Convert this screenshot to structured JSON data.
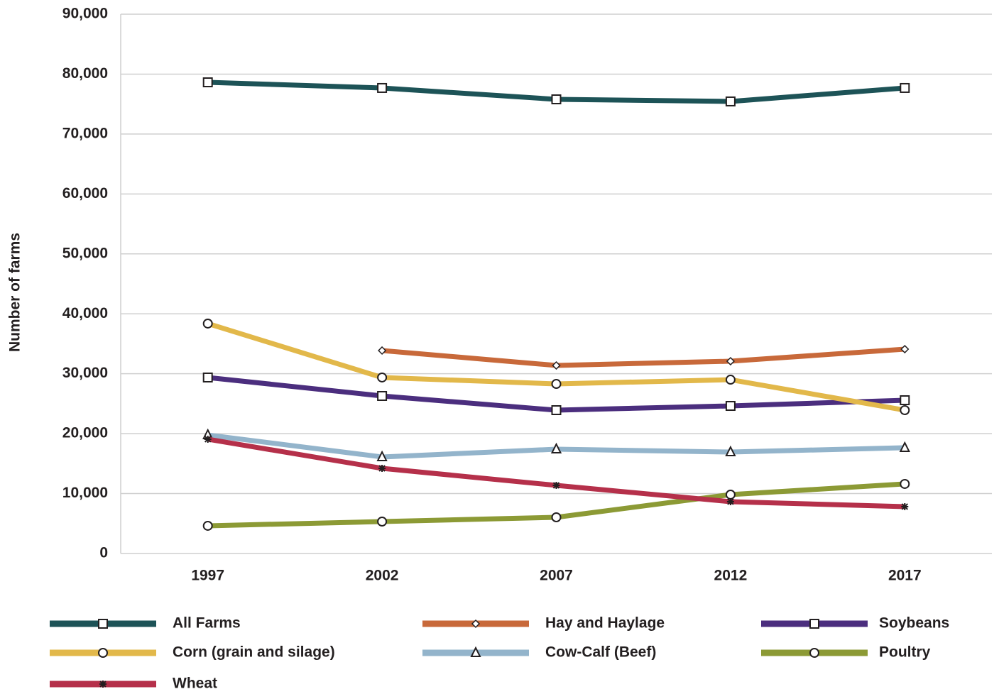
{
  "chart_data": {
    "type": "line",
    "y_label": "Number of farms",
    "categories": [
      "1997",
      "2002",
      "2007",
      "2012",
      "2017"
    ],
    "ylim": [
      0,
      90000
    ],
    "yticks": [
      0,
      {
        "value": 10000,
        "label": "10,000"
      },
      {
        "value": 20000,
        "label": "20,000"
      },
      {
        "value": 30000,
        "label": "30,000"
      },
      {
        "value": 40000,
        "label": "40,000"
      },
      {
        "value": 50000,
        "label": "50,000"
      },
      {
        "value": 60000,
        "label": "60,000"
      },
      {
        "value": 70000,
        "label": "70,000"
      },
      {
        "value": 80000,
        "label": "80,000"
      },
      {
        "value": 90000,
        "label": "90,000"
      }
    ],
    "grid": true,
    "series": [
      {
        "name": "All Farms",
        "color": "#1d5357",
        "marker": "square",
        "values": [
          78630,
          77690,
          75790,
          75440,
          77690
        ]
      },
      {
        "name": "Hay and Haylage",
        "color": "#c8693a",
        "marker": "diamond",
        "values": [
          null,
          33870,
          31380,
          32090,
          34100
        ]
      },
      {
        "name": "Soybeans",
        "color": "#4b2e7e",
        "marker": "square",
        "values": [
          29370,
          26290,
          23920,
          24630,
          25580
        ]
      },
      {
        "name": "Corn (grain and silage)",
        "color": "#e2b84a",
        "marker": "circle",
        "values": [
          38370,
          29370,
          28300,
          29010,
          23920
        ]
      },
      {
        "name": "Cow-Calf (Beef)",
        "color": "#93b4cb",
        "marker": "triangle",
        "values": [
          19780,
          16110,
          17410,
          16930,
          17650
        ]
      },
      {
        "name": "Poultry",
        "color": "#8c9a35",
        "marker": "circle",
        "values": [
          4620,
          5330,
          6040,
          9830,
          11610
        ]
      },
      {
        "name": "Wheat",
        "color": "#b5304a",
        "marker": "asterisk",
        "values": [
          19070,
          14210,
          11370,
          8650,
          7820
        ]
      }
    ]
  }
}
